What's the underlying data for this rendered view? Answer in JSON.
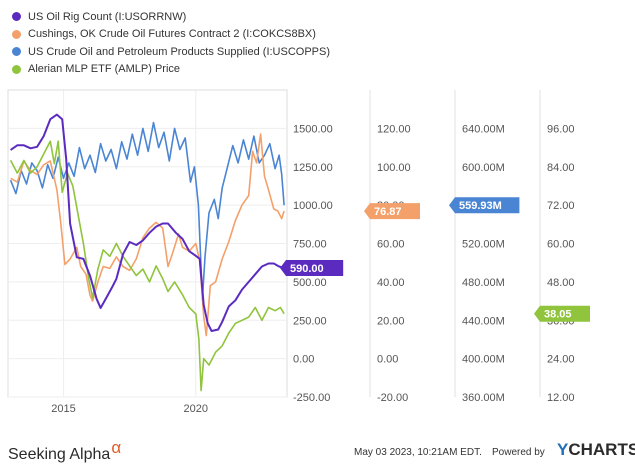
{
  "legend": [
    {
      "label": "US Oil Rig Count (I:USORRNW)",
      "color": "#5b2bc0"
    },
    {
      "label": "Cushings, OK Crude Oil Futures Contract 2 (I:COKCS8BX)",
      "color": "#f4a06a"
    },
    {
      "label": "US Crude Oil and Petroleum Products Supplied (I:USCOPPS)",
      "color": "#4a85d4"
    },
    {
      "label": "Alerian MLP ETF (AMLP) Price",
      "color": "#8fc43c"
    }
  ],
  "chart_data": {
    "type": "line",
    "x_ticks": [
      "2015",
      "2020"
    ],
    "axes": [
      {
        "series": "US Oil Rig Count (I:USORRNW)",
        "range": [
          -250,
          1750
        ],
        "ticks": [
          "1500.00",
          "1250.00",
          "1000.00",
          "750.00",
          "500.00",
          "250.00",
          "0.00",
          "-250.00"
        ]
      },
      {
        "series": "Cushings, OK Crude Oil Futures Contract 2 (I:COKCS8BX)",
        "range": [
          -20,
          140
        ],
        "ticks": [
          "120.00",
          "100.00",
          "80.00",
          "60.00",
          "40.00",
          "20.00",
          "0.00",
          "-20.00"
        ]
      },
      {
        "series": "US Crude Oil and Petroleum Products Supplied (I:USCOPPS)",
        "range": [
          360,
          680
        ],
        "ticks": [
          "640.00M",
          "600.00M",
          "560.00M",
          "520.00M",
          "480.00M",
          "440.00M",
          "400.00M",
          "360.00M"
        ]
      },
      {
        "series": "Alerian MLP ETF (AMLP) Price",
        "range": [
          12,
          108
        ],
        "ticks": [
          "96.00",
          "84.00",
          "72.00",
          "60.00",
          "48.00",
          "36.00",
          "24.00",
          "12.00"
        ]
      }
    ],
    "series": [
      {
        "name": "US Oil Rig Count (I:USORRNW)",
        "color": "#5b2bc0",
        "last_label": "590.00",
        "points": [
          [
            2013.0,
            1360
          ],
          [
            2013.25,
            1390
          ],
          [
            2013.5,
            1390
          ],
          [
            2013.75,
            1370
          ],
          [
            2014.0,
            1380
          ],
          [
            2014.25,
            1450
          ],
          [
            2014.5,
            1560
          ],
          [
            2014.75,
            1590
          ],
          [
            2014.95,
            1560
          ],
          [
            2015.1,
            1300
          ],
          [
            2015.25,
            880
          ],
          [
            2015.5,
            660
          ],
          [
            2015.75,
            650
          ],
          [
            2016.0,
            540
          ],
          [
            2016.25,
            390
          ],
          [
            2016.4,
            330
          ],
          [
            2016.6,
            390
          ],
          [
            2016.85,
            470
          ],
          [
            2017.0,
            520
          ],
          [
            2017.25,
            680
          ],
          [
            2017.5,
            760
          ],
          [
            2017.75,
            740
          ],
          [
            2018.0,
            770
          ],
          [
            2018.25,
            820
          ],
          [
            2018.5,
            860
          ],
          [
            2018.75,
            880
          ],
          [
            2018.95,
            880
          ],
          [
            2019.25,
            820
          ],
          [
            2019.5,
            780
          ],
          [
            2019.75,
            700
          ],
          [
            2020.0,
            670
          ],
          [
            2020.15,
            650
          ],
          [
            2020.3,
            350
          ],
          [
            2020.45,
            230
          ],
          [
            2020.6,
            180
          ],
          [
            2020.85,
            190
          ],
          [
            2021.0,
            240
          ],
          [
            2021.25,
            340
          ],
          [
            2021.5,
            380
          ],
          [
            2021.75,
            450
          ],
          [
            2022.0,
            500
          ],
          [
            2022.25,
            550
          ],
          [
            2022.5,
            600
          ],
          [
            2022.75,
            620
          ],
          [
            2022.95,
            620
          ],
          [
            2023.15,
            600
          ],
          [
            2023.34,
            590
          ]
        ]
      },
      {
        "name": "Cushings, OK Crude Oil Futures Contract 2 (I:COKCS8BX)",
        "color": "#f4a06a",
        "last_label": "76.87",
        "points": [
          [
            2013.0,
            94
          ],
          [
            2013.25,
            92
          ],
          [
            2013.5,
            103
          ],
          [
            2013.75,
            98
          ],
          [
            2014.0,
            96
          ],
          [
            2014.25,
            101
          ],
          [
            2014.5,
            103
          ],
          [
            2014.75,
            88
          ],
          [
            2014.9,
            70
          ],
          [
            2015.05,
            49
          ],
          [
            2015.25,
            52
          ],
          [
            2015.5,
            58
          ],
          [
            2015.65,
            48
          ],
          [
            2015.85,
            44
          ],
          [
            2016.0,
            33
          ],
          [
            2016.1,
            30
          ],
          [
            2016.3,
            40
          ],
          [
            2016.5,
            48
          ],
          [
            2016.75,
            47
          ],
          [
            2017.0,
            53
          ],
          [
            2017.25,
            48
          ],
          [
            2017.5,
            46
          ],
          [
            2017.75,
            52
          ],
          [
            2018.0,
            63
          ],
          [
            2018.25,
            68
          ],
          [
            2018.5,
            71
          ],
          [
            2018.75,
            68
          ],
          [
            2018.95,
            48
          ],
          [
            2019.1,
            54
          ],
          [
            2019.35,
            65
          ],
          [
            2019.5,
            58
          ],
          [
            2019.75,
            56
          ],
          [
            2020.0,
            60
          ],
          [
            2020.15,
            51
          ],
          [
            2020.3,
            22
          ],
          [
            2020.4,
            12
          ],
          [
            2020.55,
            38
          ],
          [
            2020.75,
            40
          ],
          [
            2021.0,
            52
          ],
          [
            2021.25,
            61
          ],
          [
            2021.5,
            72
          ],
          [
            2021.75,
            80
          ],
          [
            2022.0,
            85
          ],
          [
            2022.15,
            108
          ],
          [
            2022.3,
            102
          ],
          [
            2022.45,
            117
          ],
          [
            2022.6,
            95
          ],
          [
            2022.75,
            88
          ],
          [
            2022.95,
            78
          ],
          [
            2023.1,
            77
          ],
          [
            2023.25,
            73
          ],
          [
            2023.34,
            76.87
          ]
        ]
      },
      {
        "name": "US Crude Oil and Petroleum Products Supplied (I:USCOPPS)",
        "color": "#4a85d4",
        "points": [
          [
            2013.0,
            586
          ],
          [
            2013.2,
            572
          ],
          [
            2013.4,
            596
          ],
          [
            2013.6,
            582
          ],
          [
            2013.8,
            604
          ],
          [
            2014.0,
            596
          ],
          [
            2014.2,
            578
          ],
          [
            2014.4,
            602
          ],
          [
            2014.6,
            588
          ],
          [
            2014.8,
            610
          ],
          [
            2015.0,
            588
          ],
          [
            2015.2,
            604
          ],
          [
            2015.4,
            590
          ],
          [
            2015.6,
            620
          ],
          [
            2015.8,
            598
          ],
          [
            2016.0,
            612
          ],
          [
            2016.2,
            594
          ],
          [
            2016.4,
            624
          ],
          [
            2016.6,
            606
          ],
          [
            2016.8,
            618
          ],
          [
            2017.0,
            598
          ],
          [
            2017.2,
            626
          ],
          [
            2017.4,
            608
          ],
          [
            2017.6,
            634
          ],
          [
            2017.8,
            612
          ],
          [
            2018.0,
            640
          ],
          [
            2018.2,
            616
          ],
          [
            2018.4,
            646
          ],
          [
            2018.6,
            620
          ],
          [
            2018.8,
            636
          ],
          [
            2019.0,
            606
          ],
          [
            2019.2,
            640
          ],
          [
            2019.4,
            618
          ],
          [
            2019.6,
            630
          ],
          [
            2019.8,
            584
          ],
          [
            2019.95,
            600
          ],
          [
            2020.1,
            560
          ],
          [
            2020.25,
            462
          ],
          [
            2020.35,
            506
          ],
          [
            2020.5,
            552
          ],
          [
            2020.7,
            566
          ],
          [
            2020.85,
            546
          ],
          [
            2021.0,
            578
          ],
          [
            2021.2,
            600
          ],
          [
            2021.4,
            622
          ],
          [
            2021.6,
            604
          ],
          [
            2021.8,
            628
          ],
          [
            2022.0,
            608
          ],
          [
            2022.2,
            632
          ],
          [
            2022.4,
            604
          ],
          [
            2022.6,
            612
          ],
          [
            2022.8,
            624
          ],
          [
            2023.0,
            598
          ],
          [
            2023.15,
            612
          ],
          [
            2023.25,
            592
          ],
          [
            2023.34,
            559.93
          ]
        ]
      },
      {
        "name": "Alerian MLP ETF (AMLP) Price",
        "color": "#8fc43c",
        "last_label": "38.05",
        "points": [
          [
            2013.0,
            86
          ],
          [
            2013.25,
            82
          ],
          [
            2013.5,
            86
          ],
          [
            2013.75,
            82
          ],
          [
            2014.0,
            84
          ],
          [
            2014.25,
            88
          ],
          [
            2014.5,
            92
          ],
          [
            2014.65,
            85
          ],
          [
            2014.8,
            92
          ],
          [
            2014.95,
            76
          ],
          [
            2015.15,
            82
          ],
          [
            2015.35,
            78
          ],
          [
            2015.55,
            69
          ],
          [
            2015.75,
            60
          ],
          [
            2015.95,
            49
          ],
          [
            2016.1,
            43
          ],
          [
            2016.3,
            52
          ],
          [
            2016.5,
            58
          ],
          [
            2016.75,
            56
          ],
          [
            2017.0,
            60
          ],
          [
            2017.25,
            56
          ],
          [
            2017.5,
            53
          ],
          [
            2017.75,
            50
          ],
          [
            2018.0,
            52
          ],
          [
            2018.25,
            48
          ],
          [
            2018.5,
            53
          ],
          [
            2018.75,
            49
          ],
          [
            2018.95,
            45
          ],
          [
            2019.2,
            48
          ],
          [
            2019.5,
            44
          ],
          [
            2019.75,
            40
          ],
          [
            2020.0,
            38
          ],
          [
            2020.12,
            30
          ],
          [
            2020.2,
            14
          ],
          [
            2020.3,
            24
          ],
          [
            2020.5,
            22
          ],
          [
            2020.75,
            26
          ],
          [
            2021.0,
            28
          ],
          [
            2021.25,
            32
          ],
          [
            2021.5,
            35
          ],
          [
            2021.75,
            36
          ],
          [
            2022.0,
            37
          ],
          [
            2022.25,
            40
          ],
          [
            2022.5,
            36
          ],
          [
            2022.75,
            40
          ],
          [
            2023.0,
            39
          ],
          [
            2023.2,
            40
          ],
          [
            2023.34,
            38.05
          ]
        ]
      }
    ],
    "axis_badges": [
      {
        "value": 76.87,
        "label": "76.87",
        "axis_index": 1,
        "color": "#f4a06a"
      },
      {
        "value": 559.93,
        "label": "559.93M",
        "axis_index": 2,
        "color": "#4a85d4"
      },
      {
        "value": 590.0,
        "label": "590.00",
        "axis_index": 0,
        "color": "#5b2bc0"
      },
      {
        "value": 38.05,
        "label": "38.05",
        "axis_index": 3,
        "color": "#8fc43c"
      }
    ],
    "x_range": [
      2012.9,
      2023.45
    ],
    "grid": true
  },
  "footer": {
    "timestamp": "May 03 2023, 10:21AM EDT.",
    "powered_by": "Powered by",
    "brand_y": "Y",
    "brand_rest": "CHARTS",
    "logo_text": "Seeking Alpha",
    "logo_symbol": "α"
  }
}
